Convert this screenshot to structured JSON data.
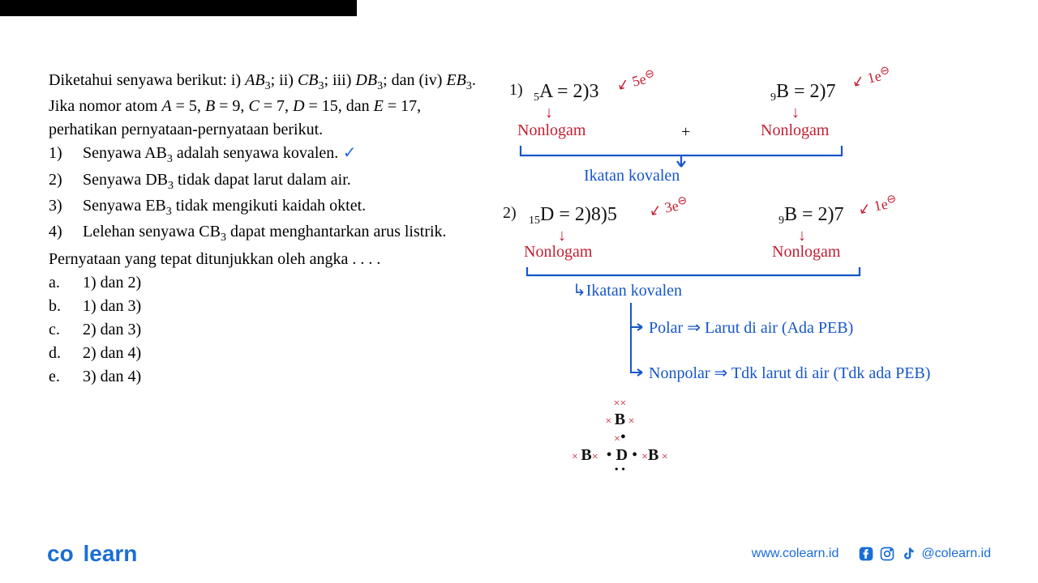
{
  "question": {
    "intro_html": "Diketahui senyawa berikut: i) <i>AB</i><sub>3</sub>; ii) <i>CB</i><sub>3</sub>; iii) <i>DB</i><sub>3</sub>; dan (iv) <i>EB</i><sub>3</sub>. Jika nomor atom <i>A</i> = 5, <i>B</i> = 9, <i>C</i> = 7, <i>D</i> = 15, dan <i>E</i> = 17, perhatikan pernyataan-pernyataan berikut.",
    "statements": [
      "Senyawa AB<sub>3</sub> adalah senyawa kovalen.",
      "Senyawa DB<sub>3</sub> tidak dapat larut dalam air.",
      "Senyawa EB<sub>3</sub> tidak mengikuti kaidah oktet.",
      "Lelehan senyawa CB<sub>3</sub> dapat menghantarkan arus listrik."
    ],
    "check_on": 0,
    "prompt": "Pernyataan yang tepat ditunjukkan oleh angka . . . .",
    "options": [
      {
        "l": "a.",
        "t": "1) dan 2)"
      },
      {
        "l": "b.",
        "t": "1) dan 3)"
      },
      {
        "l": "c.",
        "t": "2) dan 3)"
      },
      {
        "l": "d.",
        "t": "2) dan 4)"
      },
      {
        "l": "e.",
        "t": "3) dan 4)"
      }
    ]
  },
  "handwriting": {
    "line1": {
      "num": "1)",
      "A_lhs": "₅A",
      "A_rhs": "= 2)3",
      "A_arrow": "↙ 5e",
      "A_minus": "⊖",
      "B_lhs": "₉B",
      "B_rhs": "= 2)7",
      "B_arrow": "↙ 1e",
      "B_minus": "⊖",
      "nonlogamL": "Nonlogam",
      "plus": "+",
      "nonlogamR": "Nonlogam",
      "ikatan": "Ikatan   kovalen"
    },
    "line2": {
      "num": "2)",
      "D_lhs": "₁₅D",
      "D_rhs": "= 2)8)5",
      "D_arrow": "↙ 3e",
      "D_minus": "⊖",
      "B_lhs": "₉B",
      "B_rhs": "= 2)7",
      "B_arrow": "↙ 1e",
      "B_minus": "⊖",
      "nonlogamL": "Nonlogam",
      "nonlogamR": "Nonlogam",
      "ikatan": "↳Ikatan kovalen",
      "polar": "↳ Polar ⇒ Larut di air  (Ada PEB)",
      "nonpolar": "↳ Nonpolar ⇒ Tdk larut di air (Tdk ada PEB)"
    },
    "lewis": {
      "top_xx": "××",
      "B_top": "B",
      "x_side": "×",
      "bottom": "B× • D •×B",
      "dots": "• •"
    }
  },
  "footer": {
    "logo_a": "co",
    "logo_b": "learn",
    "url": "www.colearn.id",
    "handle": "@colearn.id"
  },
  "colors": {
    "red": "#c31e32",
    "blue": "#1656c9",
    "brand": "#1a6dd6"
  }
}
